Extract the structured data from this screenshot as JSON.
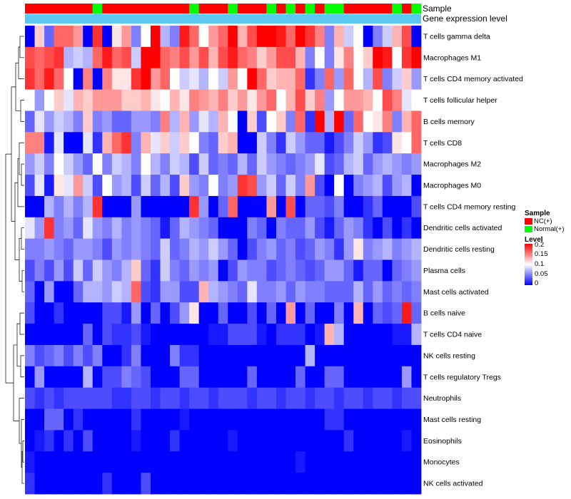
{
  "chart_data": {
    "type": "heatmap",
    "title": "",
    "annotation_labels": {
      "sample": "Sample",
      "level": "Gene expression level"
    },
    "rows": [
      "T cells gamma delta",
      "Macrophages M1",
      "T cells CD4 memory activated",
      "T cells follicular helper",
      "B cells memory",
      "T cells CD8",
      "Macrophages M2",
      "Macrophages M0",
      "T cells CD4 memory resting",
      "Dendritic cells activated",
      "Dendritic cells resting",
      "Plasma cells",
      "Mast cells activated",
      "B cells naive",
      "T cells CD4 naive",
      "NK cells resting",
      "T cells regulatory  Tregs",
      "Neutrophils",
      "Mast cells resting",
      "Eosinophils",
      "Monocytes",
      "NK cells activated"
    ],
    "sample_groups": [
      "NC",
      "NC",
      "NC",
      "NC",
      "NC",
      "NC",
      "NC",
      "Normal",
      "NC",
      "NC",
      "NC",
      "NC",
      "NC",
      "NC",
      "NC",
      "NC",
      "NC",
      "Normal",
      "NC",
      "NC",
      "NC",
      "Normal",
      "NC",
      "NC",
      "NC",
      "Normal",
      "NC",
      "Normal",
      "NC",
      "Normal",
      "NC",
      "Normal",
      "Normal",
      "NC",
      "NC",
      "NC",
      "NC",
      "NC",
      "Normal",
      "NC",
      "Normal"
    ],
    "legend": {
      "sample_title": "Sample",
      "sample_entries": [
        {
          "label": "NC(+)",
          "color": "#ff0000"
        },
        {
          "label": "Normal(+)",
          "color": "#00ff00"
        }
      ],
      "level_title": "Level",
      "level_ticks": [
        "0.2",
        "0.15",
        "0.1",
        "0.05",
        "0"
      ],
      "level_colors": {
        "low": "#0000ff",
        "mid": "#ffffff",
        "high": "#ff0000"
      },
      "range": [
        0,
        0.2
      ]
    },
    "values": [
      [
        0.0,
        0.12,
        0.04,
        0.16,
        0.16,
        0.14,
        0.0,
        0.18,
        0.0,
        0.11,
        0.14,
        0.05,
        0.1,
        0.2,
        0.07,
        0.05,
        0.19,
        0.16,
        0.1,
        0.14,
        0.16,
        0.2,
        0.13,
        0.17,
        0.2,
        0.2,
        0.19,
        0.16,
        0.2,
        0.18,
        0.15,
        0.05,
        0.13,
        0.08,
        0.1,
        0.0,
        0.05,
        0.08,
        0.13,
        0.17,
        0.0
      ],
      [
        0.17,
        0.16,
        0.17,
        0.18,
        0.07,
        0.08,
        0.07,
        0.16,
        0.19,
        0.16,
        0.17,
        0.08,
        0.2,
        0.2,
        0.16,
        0.15,
        0.17,
        0.14,
        0.17,
        0.13,
        0.17,
        0.19,
        0.16,
        0.15,
        0.12,
        0.14,
        0.17,
        0.17,
        0.13,
        0.05,
        0.1,
        0.05,
        0.11,
        0.15,
        0.1,
        0.12,
        0.2,
        0.19,
        0.1,
        0.18,
        0.2
      ],
      [
        0.18,
        0.16,
        0.19,
        0.16,
        0.1,
        0.0,
        0.15,
        0.0,
        0.15,
        0.11,
        0.11,
        0.18,
        0.2,
        0.14,
        0.16,
        0.1,
        0.08,
        0.09,
        0.07,
        0.1,
        0.08,
        0.14,
        0.1,
        0.2,
        0.16,
        0.12,
        0.13,
        0.13,
        0.16,
        0.02,
        0.05,
        0.16,
        0.06,
        0.16,
        0.1,
        0.07,
        0.17,
        0.05,
        0.08,
        0.12,
        0.06
      ],
      [
        0.1,
        0.06,
        0.1,
        0.12,
        0.09,
        0.13,
        0.12,
        0.14,
        0.14,
        0.14,
        0.12,
        0.12,
        0.13,
        0.11,
        0.1,
        0.13,
        0.11,
        0.15,
        0.14,
        0.13,
        0.15,
        0.12,
        0.14,
        0.11,
        0.14,
        0.16,
        0.1,
        0.13,
        0.17,
        0.12,
        0.15,
        0.06,
        0.1,
        0.14,
        0.14,
        0.13,
        0.1,
        0.17,
        0.15,
        0.09,
        0.1
      ],
      [
        0.04,
        0.09,
        0.06,
        0.08,
        0.07,
        0.05,
        0.12,
        0.05,
        0.06,
        0.04,
        0.04,
        0.06,
        0.06,
        0.05,
        0.15,
        0.07,
        0.13,
        0.06,
        0.09,
        0.07,
        0.13,
        0.1,
        0.0,
        0.12,
        0.03,
        0.1,
        0.12,
        0.05,
        0.16,
        0.02,
        0.2,
        0.07,
        0.2,
        0.04,
        0.16,
        0.1,
        0.11,
        0.15,
        0.05,
        0.13,
        0.16
      ],
      [
        0.15,
        0.15,
        0.01,
        0.09,
        0.0,
        0.0,
        0.09,
        0.02,
        0.13,
        0.16,
        0.18,
        0.05,
        0.13,
        0.09,
        0.12,
        0.08,
        0.12,
        0.1,
        0.05,
        0.04,
        0.12,
        0.13,
        0.0,
        0.0,
        0.08,
        0.05,
        0.02,
        0.08,
        0.06,
        0.04,
        0.04,
        0.01,
        0.03,
        0.05,
        0.08,
        0.06,
        0.02,
        0.03,
        0.11,
        0.1,
        0.16
      ],
      [
        0.06,
        0.08,
        0.05,
        0.1,
        0.08,
        0.06,
        0.04,
        0.1,
        0.05,
        0.08,
        0.07,
        0.05,
        0.1,
        0.07,
        0.05,
        0.08,
        0.07,
        0.03,
        0.08,
        0.04,
        0.05,
        0.04,
        0.07,
        0.04,
        0.08,
        0.06,
        0.05,
        0.04,
        0.05,
        0.06,
        0.09,
        0.03,
        0.04,
        0.07,
        0.08,
        0.04,
        0.06,
        0.07,
        0.06,
        0.05,
        0.06
      ],
      [
        0.03,
        0.09,
        0.01,
        0.11,
        0.09,
        0.14,
        0.08,
        0.03,
        0.1,
        0.06,
        0.07,
        0.03,
        0.08,
        0.04,
        0.07,
        0.03,
        0.12,
        0.06,
        0.05,
        0.1,
        0.05,
        0.06,
        0.18,
        0.17,
        0.06,
        0.08,
        0.04,
        0.08,
        0.05,
        0.14,
        0.03,
        0.0,
        0.1,
        0.0,
        0.05,
        0.06,
        0.07,
        0.03,
        0.06,
        0.07,
        0.0
      ],
      [
        0.0,
        0.0,
        0.07,
        0.05,
        0.07,
        0.05,
        0.07,
        0.18,
        0.0,
        0.0,
        0.0,
        0.06,
        0.0,
        0.0,
        0.0,
        0.0,
        0.0,
        0.18,
        0.06,
        0.0,
        0.04,
        0.16,
        0.0,
        0.0,
        0.0,
        0.14,
        0.0,
        0.17,
        0.0,
        0.04,
        0.04,
        0.03,
        0.05,
        0.0,
        0.0,
        0.02,
        0.04,
        0.0,
        0.0,
        0.0,
        0.03
      ],
      [
        0.09,
        0.06,
        0.18,
        0.05,
        0.06,
        0.04,
        0.09,
        0.06,
        0.05,
        0.07,
        0.05,
        0.06,
        0.05,
        0.04,
        0.01,
        0.04,
        0.07,
        0.06,
        0.05,
        0.04,
        0.0,
        0.0,
        0.0,
        0.05,
        0.04,
        0.0,
        0.05,
        0.04,
        0.04,
        0.06,
        0.03,
        0.01,
        0.04,
        0.06,
        0.05,
        0.02,
        0.0,
        0.03,
        0.0,
        0.02,
        0.0
      ],
      [
        0.05,
        0.05,
        0.06,
        0.05,
        0.04,
        0.06,
        0.06,
        0.05,
        0.03,
        0.06,
        0.05,
        0.06,
        0.05,
        0.04,
        0.08,
        0.04,
        0.05,
        0.07,
        0.06,
        0.08,
        0.06,
        0.04,
        0.0,
        0.03,
        0.05,
        0.06,
        0.04,
        0.05,
        0.03,
        0.04,
        0.06,
        0.05,
        0.02,
        0.06,
        0.11,
        0.05,
        0.06,
        0.07,
        0.05,
        0.06,
        0.07
      ],
      [
        0.03,
        0.05,
        0.03,
        0.06,
        0.03,
        0.08,
        0.04,
        0.08,
        0.06,
        0.05,
        0.07,
        0.12,
        0.04,
        0.02,
        0.08,
        0.05,
        0.04,
        0.06,
        0.05,
        0.06,
        0.0,
        0.03,
        0.06,
        0.05,
        0.05,
        0.03,
        0.04,
        0.05,
        0.04,
        0.03,
        0.04,
        0.06,
        0.06,
        0.04,
        0.01,
        0.04,
        0.04,
        0.0,
        0.04,
        0.05,
        0.06
      ],
      [
        0.04,
        0.0,
        0.06,
        0.0,
        0.0,
        0.04,
        0.07,
        0.07,
        0.06,
        0.08,
        0.07,
        0.16,
        0.03,
        0.02,
        0.06,
        0.06,
        0.03,
        0.03,
        0.13,
        0.07,
        0.06,
        0.05,
        0.04,
        0.09,
        0.05,
        0.05,
        0.06,
        0.04,
        0.06,
        0.05,
        0.05,
        0.04,
        0.04,
        0.04,
        0.07,
        0.04,
        0.06,
        0.04,
        0.05,
        0.04,
        0.05
      ],
      [
        0.03,
        0.0,
        0.0,
        0.02,
        0.0,
        0.0,
        0.0,
        0.0,
        0.03,
        0.03,
        0.01,
        0.06,
        0.0,
        0.04,
        0.0,
        0.03,
        0.06,
        0.11,
        0.0,
        0.0,
        0.04,
        0.0,
        0.0,
        0.03,
        0.0,
        0.04,
        0.0,
        0.14,
        0.0,
        0.04,
        0.0,
        0.0,
        0.05,
        0.0,
        0.13,
        0.0,
        0.04,
        0.03,
        0.04,
        0.19,
        0.04
      ],
      [
        0.0,
        0.0,
        0.0,
        0.0,
        0.0,
        0.0,
        0.04,
        0.0,
        0.03,
        0.02,
        0.02,
        0.03,
        0.01,
        0.0,
        0.0,
        0.0,
        0.0,
        0.0,
        0.0,
        0.01,
        0.01,
        0.03,
        0.03,
        0.03,
        0.01,
        0.0,
        0.02,
        0.02,
        0.02,
        0.0,
        0.01,
        0.13,
        0.07,
        0.0,
        0.0,
        0.0,
        0.0,
        0.0,
        0.01,
        0.01,
        0.07
      ],
      [
        0.05,
        0.03,
        0.04,
        0.05,
        0.03,
        0.05,
        0.03,
        0.05,
        0.0,
        0.0,
        0.02,
        0.05,
        0.0,
        0.0,
        0.0,
        0.05,
        0.02,
        0.02,
        0.0,
        0.0,
        0.0,
        0.0,
        0.0,
        0.0,
        0.0,
        0.0,
        0.0,
        0.0,
        0.0,
        0.07,
        0.0,
        0.0,
        0.0,
        0.0,
        0.0,
        0.0,
        0.0,
        0.0,
        0.0,
        0.0,
        0.0
      ],
      [
        0.0,
        0.06,
        0.0,
        0.0,
        0.0,
        0.0,
        0.07,
        0.0,
        0.03,
        0.03,
        0.05,
        0.04,
        0.03,
        0.0,
        0.0,
        0.0,
        0.04,
        0.04,
        0.0,
        0.0,
        0.0,
        0.0,
        0.0,
        0.04,
        0.0,
        0.0,
        0.0,
        0.0,
        0.04,
        0.0,
        0.0,
        0.04,
        0.04,
        0.0,
        0.0,
        0.0,
        0.0,
        0.0,
        0.0,
        0.06,
        0.0
      ],
      [
        0.03,
        0.02,
        0.03,
        0.02,
        0.03,
        0.03,
        0.03,
        0.03,
        0.03,
        0.02,
        0.02,
        0.03,
        0.03,
        0.02,
        0.03,
        0.03,
        0.02,
        0.03,
        0.03,
        0.02,
        0.03,
        0.03,
        0.03,
        0.02,
        0.03,
        0.03,
        0.02,
        0.03,
        0.03,
        0.02,
        0.03,
        0.03,
        0.02,
        0.03,
        0.03,
        0.02,
        0.03,
        0.03,
        0.02,
        0.03,
        0.03
      ],
      [
        0.0,
        0.0,
        0.04,
        0.04,
        0.0,
        0.02,
        0.0,
        0.0,
        0.0,
        0.0,
        0.0,
        0.02,
        0.0,
        0.0,
        0.0,
        0.0,
        0.01,
        0.0,
        0.0,
        0.0,
        0.0,
        0.0,
        0.0,
        0.0,
        0.0,
        0.0,
        0.0,
        0.0,
        0.0,
        0.0,
        0.0,
        0.02,
        0.02,
        0.0,
        0.0,
        0.0,
        0.0,
        0.0,
        0.0,
        0.0,
        0.0
      ],
      [
        0.0,
        0.01,
        0.02,
        0.0,
        0.02,
        0.0,
        0.03,
        0.0,
        0.0,
        0.0,
        0.0,
        0.01,
        0.0,
        0.0,
        0.0,
        0.02,
        0.0,
        0.0,
        0.0,
        0.0,
        0.0,
        0.01,
        0.0,
        0.0,
        0.0,
        0.0,
        0.0,
        0.0,
        0.0,
        0.0,
        0.0,
        0.0,
        0.0,
        0.02,
        0.0,
        0.0,
        0.0,
        0.0,
        0.0,
        0.01,
        0.0
      ],
      [
        0.01,
        0.0,
        0.0,
        0.0,
        0.0,
        0.0,
        0.0,
        0.0,
        0.0,
        0.0,
        0.0,
        0.0,
        0.0,
        0.0,
        0.0,
        0.0,
        0.0,
        0.0,
        0.0,
        0.0,
        0.0,
        0.0,
        0.0,
        0.0,
        0.0,
        0.0,
        0.0,
        0.0,
        0.01,
        0.0,
        0.0,
        0.0,
        0.0,
        0.0,
        0.0,
        0.0,
        0.0,
        0.0,
        0.0,
        0.0,
        0.0
      ],
      [
        0.02,
        0.0,
        0.0,
        0.0,
        0.0,
        0.0,
        0.0,
        0.0,
        0.02,
        0.0,
        0.0,
        0.0,
        0.03,
        0.0,
        0.0,
        0.0,
        0.0,
        0.0,
        0.0,
        0.0,
        0.0,
        0.0,
        0.0,
        0.0,
        0.0,
        0.0,
        0.0,
        0.0,
        0.0,
        0.0,
        0.0,
        0.0,
        0.0,
        0.0,
        0.0,
        0.0,
        0.0,
        0.0,
        0.0,
        0.0,
        0.0
      ]
    ]
  }
}
